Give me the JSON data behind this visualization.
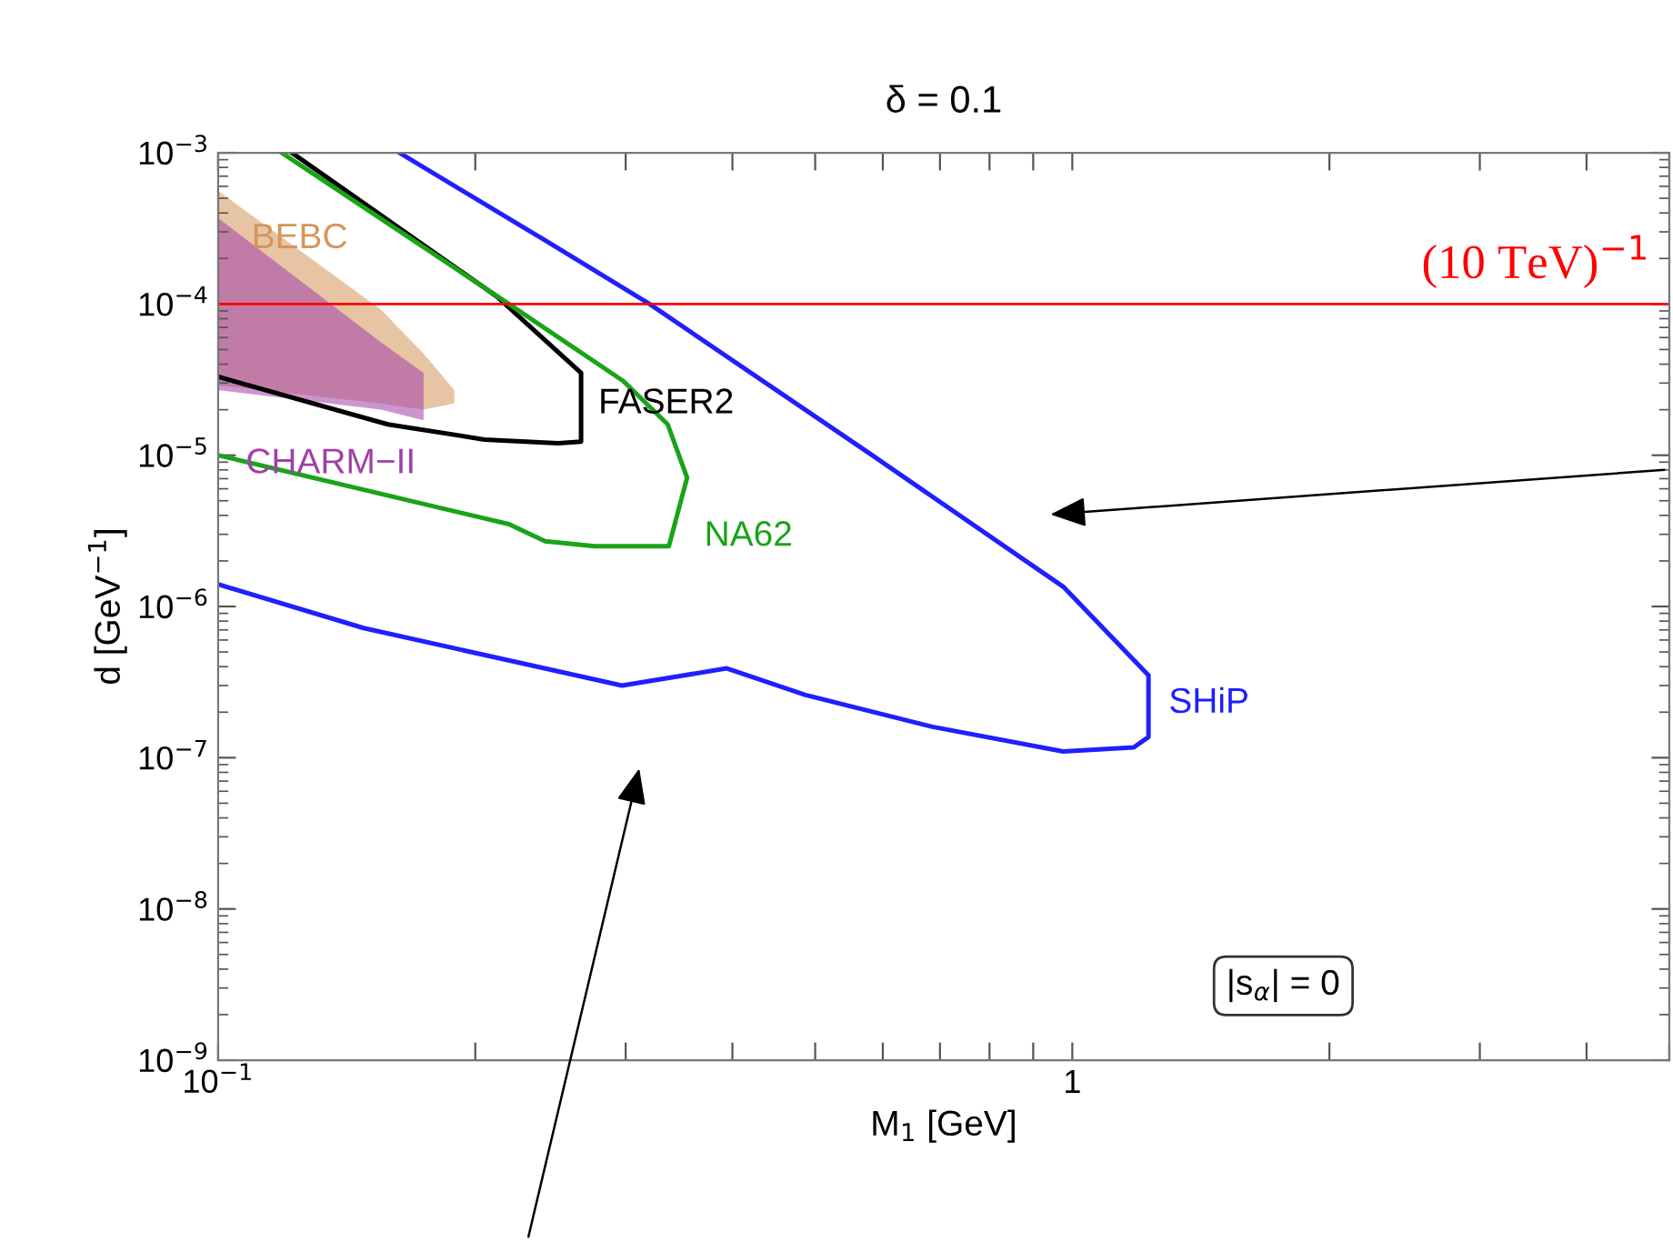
{
  "chart_data": {
    "type": "line",
    "title": "δ = 0.1",
    "xlabel": "M$_{1}$ [GeV]",
    "ylabel": "d [GeV$^{−1}$]",
    "log": "xy",
    "grid": false,
    "legend": false,
    "xlim": [
      0.1,
      5
    ],
    "xticks": [
      {
        "value": 0.1,
        "label": "10$^{−1}$"
      },
      {
        "value": 0.2,
        "label": null
      },
      {
        "value": 0.3,
        "label": null
      },
      {
        "value": 0.4,
        "label": null
      },
      {
        "value": 0.5,
        "label": null
      },
      {
        "value": 0.6,
        "label": null
      },
      {
        "value": 0.7,
        "label": null
      },
      {
        "value": 0.8,
        "label": null
      },
      {
        "value": 0.9,
        "label": null
      },
      1,
      {
        "value": 2,
        "label": null
      },
      {
        "value": 3,
        "label": null
      },
      {
        "value": 4,
        "label": null
      },
      {
        "value": 5,
        "label": null
      }
    ],
    "ylim": [
      1e-09,
      0.001
    ],
    "yticks": [
      {
        "value": 1e-09,
        "label": "10$^{−9}$"
      },
      {
        "value": 1e-08,
        "label": "10$^{−8}$"
      },
      {
        "value": 1e-07,
        "label": "10$^{−7}$"
      },
      {
        "value": 1e-06,
        "label": "10$^{−6}$"
      },
      {
        "value": 1e-05,
        "label": "10$^{−5}$"
      },
      {
        "value": 0.0001,
        "label": "10$^{−4}$"
      },
      {
        "value": 0.001,
        "label": "10$^{−3}$"
      }
    ],
    "series": [
      {
        "name": "BEBC",
        "type": "area",
        "color": "#d4955a",
        "x": [
          0.1,
          0.155,
          0.174,
          0.189,
          0.189,
          0.174,
          0.155,
          0.1
        ],
        "values": [
          0.00056,
          9.2e-05,
          4.7e-05,
          2.7e-05,
          2.2e-05,
          2e-05,
          2.2e-05,
          2.9e-05
        ]
      },
      {
        "name": "CHARM−II",
        "type": "area",
        "color": "#a040a8",
        "x": [
          0.1,
          0.155,
          0.174,
          0.174,
          0.155,
          0.1
        ],
        "values": [
          0.00037,
          5.6e-05,
          3.5e-05,
          1.7e-05,
          2e-05,
          2.7e-05
        ]
      },
      {
        "name": "FASER2",
        "type": "line",
        "color": "#000000",
        "x": [
          0.122,
          0.212,
          0.266,
          0.266,
          0.25,
          0.205,
          0.158,
          0.1
        ],
        "values": [
          0.001,
          0.000112,
          3.5e-05,
          1.23e-05,
          1.2e-05,
          1.27e-05,
          1.6e-05,
          3.3e-05
        ]
      },
      {
        "name": "NA62",
        "type": "line",
        "color": "#1aa31a",
        "x": [
          0.1187,
          0.219,
          0.298,
          0.336,
          0.354,
          0.337,
          0.276,
          0.2414,
          0.219,
          0.1
        ],
        "values": [
          0.001,
          0.0001,
          3.1e-05,
          1.6e-05,
          7.1e-06,
          2.5e-06,
          2.5e-06,
          2.7e-06,
          3.5e-06,
          1e-05
        ]
      },
      {
        "name": "SHiP",
        "type": "line",
        "color": "#1f1fff",
        "x": [
          0.163,
          0.241,
          0.32,
          0.583,
          0.976,
          1.228,
          1.228,
          1.18,
          0.976,
          0.686,
          0.487,
          0.394,
          0.297,
          0.241,
          0.148,
          0.1
        ],
        "values": [
          0.001,
          0.000265,
          0.0001,
          1e-05,
          1.35e-06,
          3.5e-07,
          1.37e-07,
          1.17e-07,
          1.1e-07,
          1.6e-07,
          2.6e-07,
          3.9e-07,
          3e-07,
          3.9e-07,
          7.2e-07,
          1.4e-06
        ]
      }
    ],
    "ref_lines": [
      {
        "axis": "y",
        "value": 0.0001,
        "label": "(10 TeV)$^{−1}$",
        "color": "#ff0000"
      }
    ],
    "annotations": [
      "|s$_{α}$| = 0"
    ]
  }
}
